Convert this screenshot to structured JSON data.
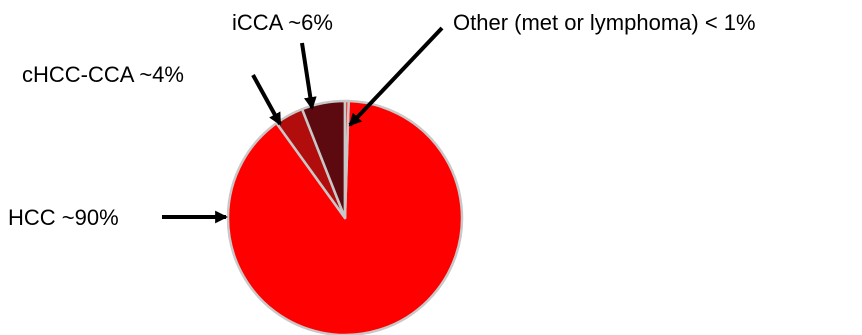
{
  "chart_data": {
    "type": "pie",
    "title": "",
    "categories": [
      "HCC",
      "cHCC-CCA",
      "iCCA",
      "Other (met or lymphoma)"
    ],
    "values": [
      90,
      4,
      6,
      0.5
    ],
    "labels": [
      "HCC ~90%",
      "cHCC-CCA ~4%",
      "iCCA ~6%",
      "Other (met or lymphoma) < 1%"
    ],
    "colors": [
      "#ff0000",
      "#b20d0d",
      "#5c0a0f",
      "#ff1a1a"
    ],
    "slice_edge_color": "#c8c8c8",
    "legend": "none",
    "annotation_style": "arrows"
  }
}
